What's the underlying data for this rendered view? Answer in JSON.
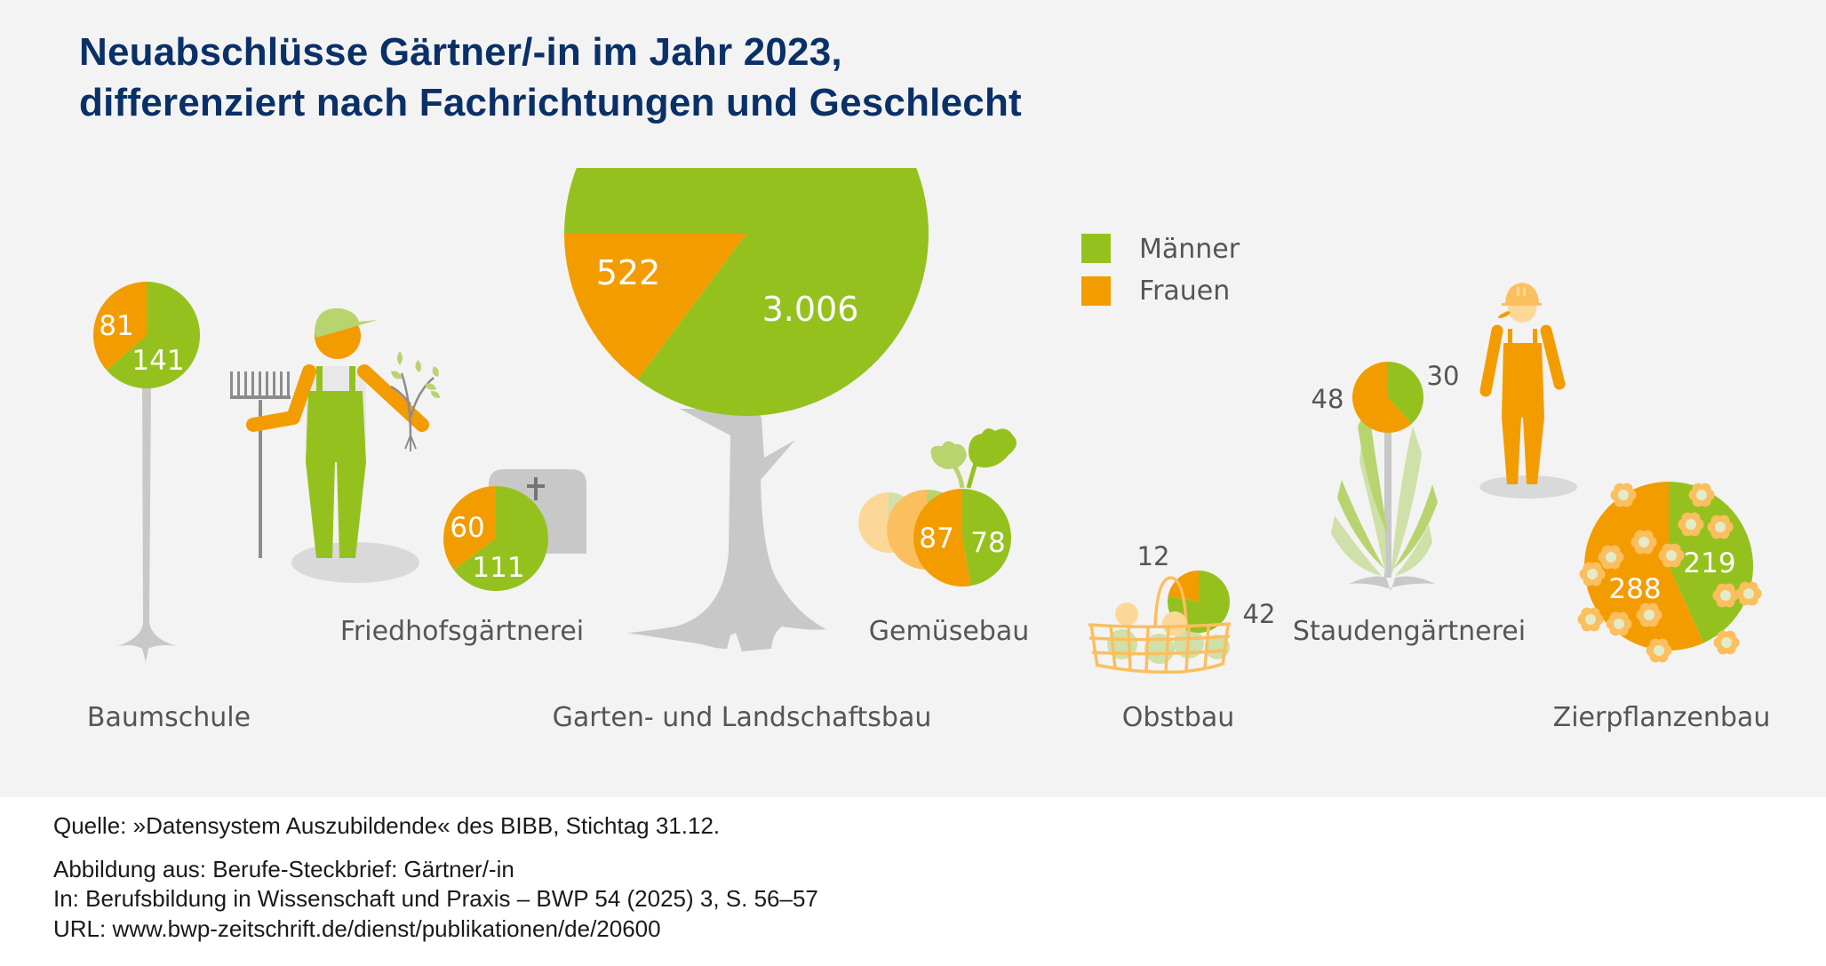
{
  "title": {
    "line1": "Neuabschlüsse Gärtner/-in im Jahr 2023,",
    "line2": "differenziert nach Fachrichtungen und Geschlecht"
  },
  "colors": {
    "maenner": "#95c11f",
    "frauen": "#f39c00",
    "title": "#0a3068",
    "label": "#555555",
    "background": "#f3f3f3"
  },
  "chart_data": {
    "type": "pie",
    "title": "Neuabschlüsse Gärtner/-in im Jahr 2023, differenziert nach Fachrichtungen und Geschlecht",
    "legend": [
      {
        "key": "maenner",
        "label": "Männer"
      },
      {
        "key": "frauen",
        "label": "Frauen"
      }
    ],
    "legend_position": "top-right",
    "categories": [
      {
        "id": "baumschule",
        "label": "Baumschule",
        "maenner": 141,
        "frauen": 81,
        "maenner_label": "141",
        "frauen_label": "81"
      },
      {
        "id": "friedhof",
        "label": "Friedhofsgärtnerei",
        "maenner": 111,
        "frauen": 60,
        "maenner_label": "111",
        "frauen_label": "60"
      },
      {
        "id": "galabau",
        "label": "Garten- und Landschaftsbau",
        "maenner": 3006,
        "frauen": 522,
        "maenner_label": "3.006",
        "frauen_label": "522"
      },
      {
        "id": "gemuese",
        "label": "Gemüsebau",
        "maenner": 78,
        "frauen": 87,
        "maenner_label": "78",
        "frauen_label": "87"
      },
      {
        "id": "obstbau",
        "label": "Obstbau",
        "maenner": 42,
        "frauen": 12,
        "maenner_label": "42",
        "frauen_label": "12"
      },
      {
        "id": "stauden",
        "label": "Staudengärtnerei",
        "maenner": 30,
        "frauen": 48,
        "maenner_label": "30",
        "frauen_label": "48"
      },
      {
        "id": "zierpflanzen",
        "label": "Zierpflanzenbau",
        "maenner": 219,
        "frauen": 288,
        "maenner_label": "219",
        "frauen_label": "288"
      }
    ]
  },
  "footer": {
    "source": "Quelle: »Datensystem Auszubildende« des BIBB, Stichtag 31.12.",
    "figure_from": "Abbildung aus: Berufe-Steckbrief: Gärtner/-in",
    "in": "In: Berufsbildung in Wissenschaft und Praxis – BWP 54 (2025) 3, S. 56–57",
    "url": "URL: www.bwp-zeitschrift.de/dienst/publikationen/de/20600"
  }
}
